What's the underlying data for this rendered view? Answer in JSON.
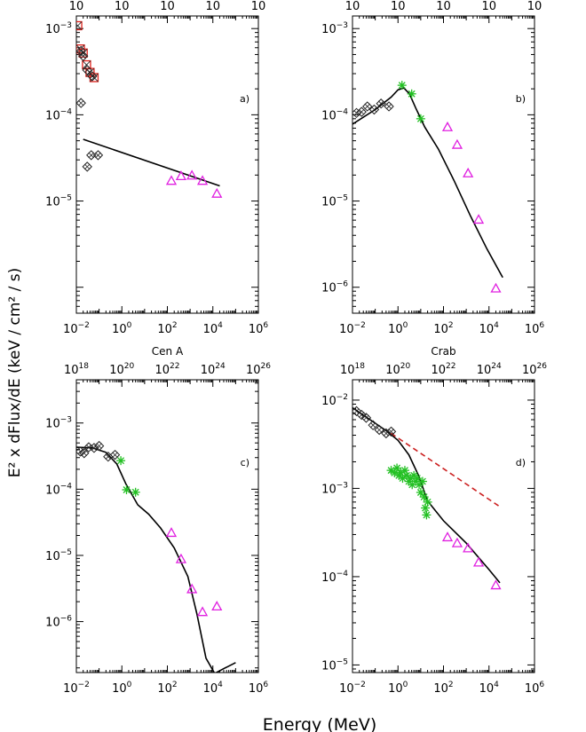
{
  "figure": {
    "xlabel": "Energy (MeV)",
    "ylabel": "E² x dFlux/dE (keV / cm² / s)"
  },
  "chart_data": [
    {
      "type": "scatter",
      "label": "a)",
      "title": "",
      "xscale": "log",
      "yscale": "log",
      "xlim": [
        0.01,
        1000000
      ],
      "ylim": [
        5e-07,
        0.0014
      ],
      "x_ticks": [
        {
          "b": "10",
          "e": "−2"
        },
        {
          "b": "10",
          "e": "0"
        },
        {
          "b": "10",
          "e": "2"
        },
        {
          "b": "10",
          "e": "4"
        },
        {
          "b": "10",
          "e": "6"
        }
      ],
      "y_ticks": [
        {
          "v": 0.001,
          "b": "10",
          "e": "−3"
        },
        {
          "v": 0.0001,
          "b": "10",
          "e": "−4"
        },
        {
          "v": 1e-05,
          "b": "10",
          "e": "−5"
        }
      ],
      "top_ticks": [
        {
          "b": "10",
          "e": ""
        },
        {
          "b": "10",
          "e": ""
        },
        {
          "b": "10",
          "e": ""
        },
        {
          "b": "10",
          "e": ""
        },
        {
          "b": "10",
          "e": ""
        }
      ],
      "series": [
        {
          "marker": "square",
          "color": "#e0201a",
          "points": [
            [
              0.0115,
              0.00108
            ],
            [
              0.015,
              0.00058
            ],
            [
              0.02,
              0.00052
            ],
            [
              0.028,
              0.00038
            ],
            [
              0.04,
              0.00031
            ],
            [
              0.06,
              0.00027
            ]
          ]
        },
        {
          "marker": "diamond",
          "color": "#222222",
          "points": [
            [
              0.016,
              0.00055
            ],
            [
              0.02,
              0.00048
            ],
            [
              0.03,
              0.00033
            ],
            [
              0.05,
              0.00028
            ],
            [
              0.016,
              0.000137
            ],
            [
              0.03,
              2.5e-05
            ],
            [
              0.045,
              3.4e-05
            ],
            [
              0.09,
              3.4e-05
            ]
          ]
        },
        {
          "marker": "triangle",
          "color": "#e020e0",
          "points": [
            [
              150,
              1.72e-05
            ],
            [
              400,
              1.95e-05
            ],
            [
              1200,
              1.98e-05
            ],
            [
              3500,
              1.72e-05
            ],
            [
              15000,
              1.22e-05
            ]
          ]
        }
      ],
      "lines": [
        {
          "style": "solid",
          "color": "#000000",
          "points": [
            [
              0.02,
              5.2e-05
            ],
            [
              20000,
              1.5e-05
            ]
          ]
        }
      ]
    },
    {
      "type": "scatter",
      "label": "b)",
      "title": "",
      "xscale": "log",
      "yscale": "log",
      "xlim": [
        0.01,
        1000000
      ],
      "ylim": [
        5e-07,
        0.0014
      ],
      "x_ticks": [
        {
          "b": "10",
          "e": "−2"
        },
        {
          "b": "10",
          "e": "0"
        },
        {
          "b": "10",
          "e": "2"
        },
        {
          "b": "10",
          "e": "4"
        },
        {
          "b": "10",
          "e": "6"
        }
      ],
      "y_ticks": [
        {
          "v": 0.001,
          "b": "10",
          "e": "−3"
        },
        {
          "v": 0.0001,
          "b": "10",
          "e": "−4"
        },
        {
          "v": 1e-05,
          "b": "10",
          "e": "−5"
        },
        {
          "v": 1e-06,
          "b": "10",
          "e": "−6"
        }
      ],
      "top_ticks": [
        {
          "b": "10",
          "e": ""
        },
        {
          "b": "10",
          "e": ""
        },
        {
          "b": "10",
          "e": ""
        },
        {
          "b": "10",
          "e": ""
        },
        {
          "b": "10",
          "e": ""
        }
      ],
      "series": [
        {
          "marker": "diamond",
          "color": "#222222",
          "points": [
            [
              0.015,
              0.000105
            ],
            [
              0.025,
              0.000108
            ],
            [
              0.045,
              0.000125
            ],
            [
              0.09,
              0.000115
            ],
            [
              0.18,
              0.000135
            ],
            [
              0.4,
              0.000125
            ]
          ]
        },
        {
          "marker": "star",
          "color": "#22c022",
          "points": [
            [
              1.5,
              0.00022
            ],
            [
              4,
              0.000175
            ],
            [
              10,
              9e-05
            ]
          ]
        },
        {
          "marker": "triangle",
          "color": "#e020e0",
          "points": [
            [
              150,
              7.2e-05
            ],
            [
              400,
              4.5e-05
            ],
            [
              1200,
              2.1e-05
            ],
            [
              3500,
              6.1e-06
            ],
            [
              20000,
              9.7e-07
            ]
          ]
        }
      ],
      "lines": [
        {
          "style": "solid",
          "color": "#000000",
          "points": [
            [
              0.01,
              7.8e-05
            ],
            [
              0.1,
              0.000115
            ],
            [
              0.5,
              0.00016
            ],
            [
              1,
              0.000195
            ],
            [
              1.8,
              0.000205
            ],
            [
              3.2,
              0.000175
            ],
            [
              6,
              0.00012
            ],
            [
              15,
              7.2e-05
            ],
            [
              60,
              4e-05
            ],
            [
              300,
              1.7e-05
            ],
            [
              1500,
              6.8e-06
            ],
            [
              8000,
              2.8e-06
            ],
            [
              40000,
              1.3e-06
            ]
          ]
        }
      ]
    },
    {
      "type": "scatter",
      "label": "c)",
      "title": "Cen A",
      "xscale": "log",
      "yscale": "log",
      "xlim": [
        0.01,
        1000000
      ],
      "ylim": [
        1.7e-07,
        0.0045
      ],
      "x_ticks": [
        {
          "b": "10",
          "e": "−2"
        },
        {
          "b": "10",
          "e": "0"
        },
        {
          "b": "10",
          "e": "2"
        },
        {
          "b": "10",
          "e": "4"
        },
        {
          "b": "10",
          "e": "6"
        }
      ],
      "y_ticks": [
        {
          "v": 0.001,
          "b": "10",
          "e": "−3"
        },
        {
          "v": 0.0001,
          "b": "10",
          "e": "−4"
        },
        {
          "v": 1e-05,
          "b": "10",
          "e": "−5"
        },
        {
          "v": 1e-06,
          "b": "10",
          "e": "−6"
        }
      ],
      "top_ticks": [
        {
          "b": "10",
          "e": "18"
        },
        {
          "b": "10",
          "e": "20"
        },
        {
          "b": "10",
          "e": "22"
        },
        {
          "b": "10",
          "e": "24"
        },
        {
          "b": "10",
          "e": "26"
        }
      ],
      "series": [
        {
          "marker": "diamond",
          "color": "#222222",
          "points": [
            [
              0.015,
              0.00037
            ],
            [
              0.022,
              0.00035
            ],
            [
              0.035,
              0.00043
            ],
            [
              0.06,
              0.00042
            ],
            [
              0.1,
              0.00045
            ],
            [
              0.25,
              0.00031
            ],
            [
              0.5,
              0.00033
            ]
          ]
        },
        {
          "marker": "star",
          "color": "#22c022",
          "points": [
            [
              0.9,
              0.00027
            ],
            [
              1.6,
              9.8e-05
            ],
            [
              4,
              9e-05
            ]
          ]
        },
        {
          "marker": "triangle",
          "color": "#e020e0",
          "points": [
            [
              150,
              2.2e-05
            ],
            [
              400,
              8.8e-06
            ],
            [
              1200,
              3.1e-06
            ],
            [
              3500,
              1.4e-06
            ],
            [
              15000,
              1.7e-06
            ]
          ]
        }
      ],
      "lines": [
        {
          "style": "solid",
          "color": "#000000",
          "points": [
            [
              0.01,
              0.00043
            ],
            [
              0.05,
              0.00042
            ],
            [
              0.2,
              0.00036
            ],
            [
              0.6,
              0.00024
            ],
            [
              1.5,
              0.00012
            ],
            [
              5,
              5.8e-05
            ],
            [
              15,
              4.2e-05
            ],
            [
              50,
              2.6e-05
            ],
            [
              200,
              1.3e-05
            ],
            [
              800,
              4.8e-06
            ],
            [
              2000,
              1.3e-06
            ],
            [
              5000,
              2.8e-07
            ],
            [
              12000,
              1.65e-07
            ],
            [
              30000,
              1.95e-07
            ],
            [
              100000,
              2.4e-07
            ]
          ]
        }
      ]
    },
    {
      "type": "scatter",
      "label": "d)",
      "title": "Crab",
      "xscale": "log",
      "yscale": "log",
      "xlim": [
        0.01,
        1000000
      ],
      "ylim": [
        8.2e-06,
        0.017
      ],
      "x_ticks": [
        {
          "b": "10",
          "e": "−2"
        },
        {
          "b": "10",
          "e": "0"
        },
        {
          "b": "10",
          "e": "2"
        },
        {
          "b": "10",
          "e": "4"
        },
        {
          "b": "10",
          "e": "6"
        }
      ],
      "y_ticks": [
        {
          "v": 0.01,
          "b": "10",
          "e": "−2"
        },
        {
          "v": 0.001,
          "b": "10",
          "e": "−3"
        },
        {
          "v": 0.0001,
          "b": "10",
          "e": "−4"
        },
        {
          "v": 1e-05,
          "b": "10",
          "e": "−5"
        }
      ],
      "top_ticks": [
        {
          "b": "10",
          "e": "18"
        },
        {
          "b": "10",
          "e": "20"
        },
        {
          "b": "10",
          "e": "22"
        },
        {
          "b": "10",
          "e": "24"
        },
        {
          "b": "10",
          "e": "26"
        }
      ],
      "series": [
        {
          "marker": "diamond",
          "color": "#222222",
          "points": [
            [
              0.015,
              0.0075
            ],
            [
              0.025,
              0.0068
            ],
            [
              0.04,
              0.0063
            ],
            [
              0.08,
              0.0052
            ],
            [
              0.15,
              0.0046
            ],
            [
              0.3,
              0.0042
            ],
            [
              0.5,
              0.0044
            ]
          ]
        },
        {
          "marker": "star",
          "color": "#22c022",
          "points": [
            [
              0.5,
              0.0016
            ],
            [
              0.7,
              0.0015
            ],
            [
              0.9,
              0.0017
            ],
            [
              1.1,
              0.0014
            ],
            [
              1.3,
              0.0015
            ],
            [
              1.6,
              0.0013
            ],
            [
              2,
              0.0016
            ],
            [
              2.4,
              0.0014
            ],
            [
              3,
              0.0012
            ],
            [
              3.5,
              0.0013
            ],
            [
              4.2,
              0.0011
            ],
            [
              5,
              0.0014
            ],
            [
              6,
              0.0012
            ],
            [
              7,
              0.0013
            ],
            [
              8.5,
              0.0011
            ],
            [
              10,
              0.0009
            ],
            [
              12,
              0.0012
            ],
            [
              14,
              0.0008
            ],
            [
              16,
              0.0006
            ],
            [
              18,
              0.0005
            ],
            [
              20,
              0.0007
            ]
          ]
        },
        {
          "marker": "triangle",
          "color": "#e020e0",
          "points": [
            [
              150,
              0.00028
            ],
            [
              400,
              0.00024
            ],
            [
              1200,
              0.00021
            ],
            [
              3500,
              0.000145
            ],
            [
              20000,
              8e-05
            ]
          ]
        }
      ],
      "lines": [
        {
          "style": "solid",
          "color": "#000000",
          "points": [
            [
              0.01,
              0.0082
            ],
            [
              0.3,
              0.0045
            ],
            [
              1,
              0.0035
            ],
            [
              3,
              0.0024
            ],
            [
              8,
              0.0014
            ],
            [
              20,
              0.00072
            ],
            [
              100,
              0.00043
            ],
            [
              1000,
              0.00024
            ],
            [
              10000,
              0.00012
            ],
            [
              30000,
              8.5e-05
            ]
          ]
        },
        {
          "style": "dashed",
          "color": "#cc2020",
          "points": [
            [
              0.5,
              0.0042
            ],
            [
              30000,
              0.00062
            ]
          ]
        }
      ]
    }
  ]
}
